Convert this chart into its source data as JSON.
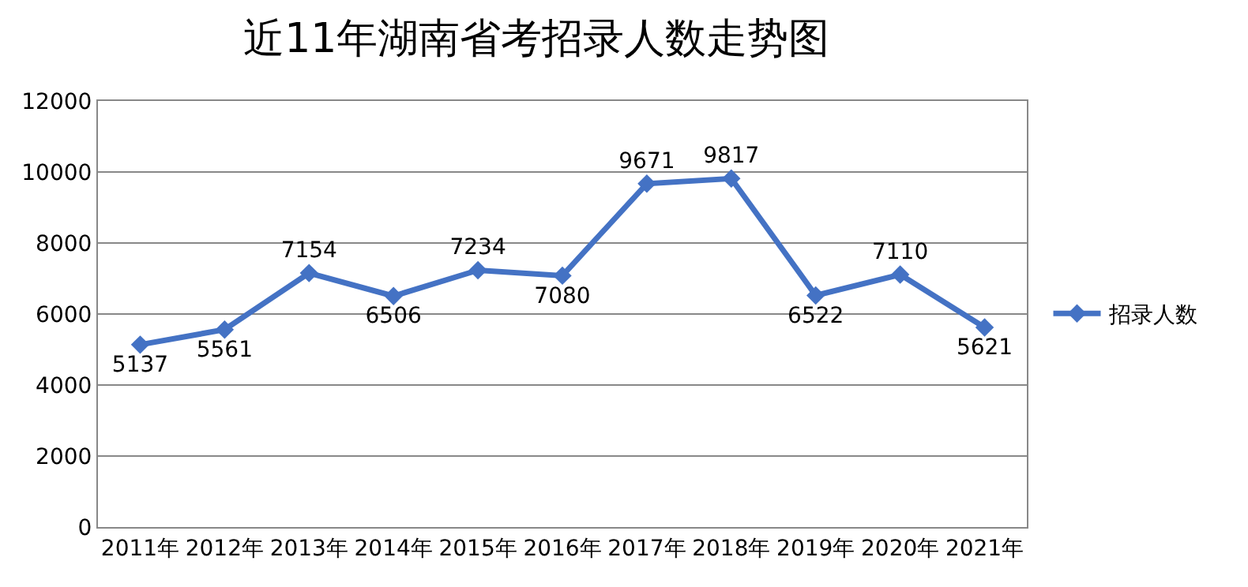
{
  "chart_data": {
    "type": "line",
    "title": "近11年湖南省考招录人数走势图",
    "categories": [
      "2011年",
      "2012年",
      "2013年",
      "2014年",
      "2015年",
      "2016年",
      "2017年",
      "2018年",
      "2019年",
      "2020年",
      "2021年"
    ],
    "series": [
      {
        "name": "招录人数",
        "color": "#4472c4",
        "values": [
          5137,
          5561,
          7154,
          6506,
          7234,
          7080,
          9671,
          9817,
          6522,
          7110,
          5621
        ]
      }
    ],
    "ylim": [
      0,
      12000
    ],
    "yticks": [
      0,
      2000,
      4000,
      6000,
      8000,
      10000,
      12000
    ],
    "grid": "y",
    "legend": "right",
    "marker": "diamond",
    "line_style": "solid",
    "data_labels": true
  }
}
